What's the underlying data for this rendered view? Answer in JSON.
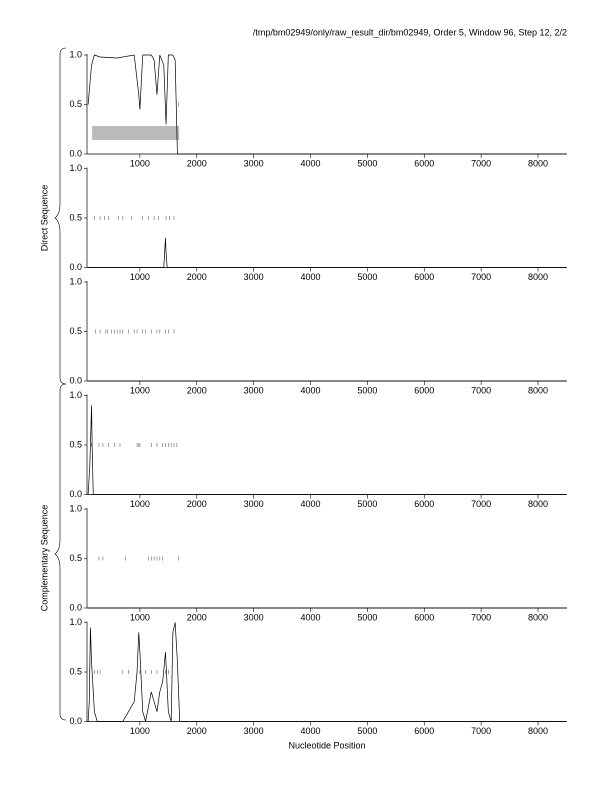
{
  "header": "/tmp/bm02949/only/raw_result_dir/bm02949, Order 5, Window 96, Step 12, 2/2",
  "y_labels": [
    "Direct Sequence",
    "Complementary Sequence"
  ],
  "x_label": "Nucleotide Position",
  "chart_data": [
    {
      "type": "line",
      "color": "#000000",
      "xlim": [
        70,
        8510
      ],
      "ylim": [
        0,
        1
      ],
      "xticks": [
        1000,
        2000,
        3000,
        4000,
        5000,
        6000,
        7000,
        8000
      ],
      "yticks": [
        {
          "value": 0,
          "label": "0.0"
        },
        {
          "value": 0.5,
          "label": "0.5"
        },
        {
          "value": 1,
          "label": "1.0"
        }
      ],
      "x": [
        90,
        150,
        200,
        300,
        600,
        900,
        980,
        1000,
        1050,
        1200,
        1250,
        1300,
        1350,
        1420,
        1460,
        1500,
        1580,
        1620,
        1660,
        1700,
        8500
      ],
      "values": [
        0.5,
        0.9,
        1.0,
        0.98,
        0.97,
        1.0,
        0.6,
        0.45,
        1.0,
        1.0,
        0.95,
        0.6,
        1.0,
        0.9,
        0.3,
        1.0,
        1.0,
        0.95,
        0,
        0,
        0
      ],
      "stops": [
        1680
      ],
      "regions": [
        {
          "start": 160,
          "end": 1690
        }
      ]
    },
    {
      "type": "line",
      "color": "#000000",
      "xlim": [
        70,
        8510
      ],
      "ylim": [
        0,
        1
      ],
      "xticks": [
        1000,
        2000,
        3000,
        4000,
        5000,
        6000,
        7000,
        8000
      ],
      "yticks": [
        {
          "value": 0,
          "label": "0.0"
        },
        {
          "value": 0.5,
          "label": "0.5"
        },
        {
          "value": 1,
          "label": "1.0"
        }
      ],
      "x": [
        90,
        1420,
        1440,
        1450,
        1460,
        1480,
        8500
      ],
      "values": [
        0,
        0,
        0.2,
        0.3,
        0.15,
        0,
        0
      ],
      "stops": [
        200,
        300,
        380,
        450,
        620,
        700,
        850,
        1050,
        1150,
        1250,
        1330,
        1460,
        1520,
        1600
      ]
    },
    {
      "type": "line",
      "color": "#000000",
      "xlim": [
        70,
        8510
      ],
      "ylim": [
        0,
        1
      ],
      "xticks": [
        1000,
        2000,
        3000,
        4000,
        5000,
        6000,
        7000,
        8000
      ],
      "yticks": [
        {
          "value": 0,
          "label": "0.0"
        },
        {
          "value": 0.5,
          "label": "0.5"
        },
        {
          "value": 1,
          "label": "1.0"
        }
      ],
      "x": [
        90,
        8500
      ],
      "values": [
        0,
        0
      ],
      "stops": [
        220,
        300,
        400,
        430,
        500,
        550,
        600,
        650,
        700,
        800,
        900,
        950,
        1050,
        1100,
        1200,
        1300,
        1350,
        1450,
        1500,
        1600
      ]
    },
    {
      "type": "line",
      "color": "#000000",
      "xlim": [
        70,
        8510
      ],
      "ylim": [
        0,
        1
      ],
      "xticks": [
        1000,
        2000,
        3000,
        4000,
        5000,
        6000,
        7000,
        8000
      ],
      "yticks": [
        {
          "value": 0,
          "label": "0.0"
        },
        {
          "value": 0.5,
          "label": "0.5"
        },
        {
          "value": 1,
          "label": "1.0"
        }
      ],
      "x": [
        90,
        120,
        140,
        150,
        160,
        180,
        8500
      ],
      "values": [
        0,
        0.3,
        0.7,
        0.9,
        0.5,
        0,
        0
      ],
      "stops": [
        150,
        280,
        350,
        450,
        550,
        650,
        950,
        980,
        1000,
        1200,
        1300,
        1400,
        1450,
        1500,
        1550,
        1600,
        1650
      ]
    },
    {
      "type": "line",
      "color": "#000000",
      "xlim": [
        70,
        8510
      ],
      "ylim": [
        0,
        1
      ],
      "xticks": [
        1000,
        2000,
        3000,
        4000,
        5000,
        6000,
        7000,
        8000
      ],
      "yticks": [
        {
          "value": 0,
          "label": "0.0"
        },
        {
          "value": 0.5,
          "label": "0.5"
        },
        {
          "value": 1,
          "label": "1.0"
        }
      ],
      "x": [
        90,
        8500
      ],
      "values": [
        0,
        0
      ],
      "stops": [
        280,
        350,
        750,
        1150,
        1200,
        1250,
        1300,
        1350,
        1400,
        1680
      ]
    },
    {
      "type": "line",
      "color": "#000000",
      "xlim": [
        70,
        8510
      ],
      "ylim": [
        0,
        1
      ],
      "xticks": [
        1000,
        2000,
        3000,
        4000,
        5000,
        6000,
        7000,
        8000
      ],
      "yticks": [
        {
          "value": 0,
          "label": "0.0"
        },
        {
          "value": 0.5,
          "label": "0.5"
        },
        {
          "value": 1,
          "label": "1.0"
        }
      ],
      "x": [
        90,
        110,
        130,
        150,
        200,
        250,
        300,
        700,
        800,
        900,
        950,
        980,
        1000,
        1050,
        1100,
        1200,
        1250,
        1300,
        1350,
        1400,
        1450,
        1500,
        1550,
        1580,
        1620,
        1660,
        1700,
        8500
      ],
      "values": [
        0,
        0.2,
        0.95,
        0.6,
        0.1,
        0,
        0,
        0,
        0.1,
        0.2,
        0.5,
        0.9,
        0.7,
        0.1,
        0,
        0.3,
        0.2,
        0.1,
        0.3,
        0.4,
        0.7,
        0.1,
        0,
        0.9,
        1.0,
        0.6,
        0,
        0
      ],
      "stops": [
        200,
        250,
        300,
        700,
        800,
        1000,
        1100,
        1200,
        1300,
        1450,
        1500
      ]
    }
  ]
}
